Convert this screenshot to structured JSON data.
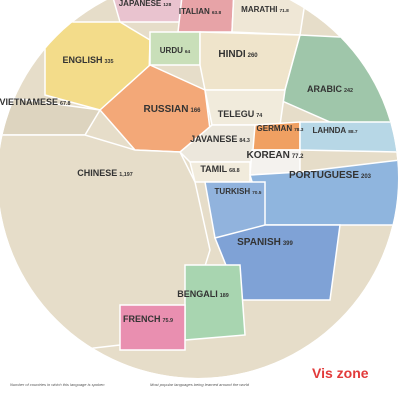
{
  "languages": [
    {
      "name": "JAPANESE",
      "value": 128
    },
    {
      "name": "ITALIAN",
      "value": 63.8
    },
    {
      "name": "MARATHI",
      "value": 71.8
    },
    {
      "name": "ENGLISH",
      "value": 335
    },
    {
      "name": "URDU",
      "value": 64
    },
    {
      "name": "HINDI",
      "value": 260
    },
    {
      "name": "ARABIC",
      "value": 242
    },
    {
      "name": "VIETNAMESE",
      "value": 67.8
    },
    {
      "name": "RUSSIAN",
      "value": 166
    },
    {
      "name": "TELEGU",
      "value": 74
    },
    {
      "name": "GERMAN",
      "value": 78.3
    },
    {
      "name": "LAHNDA",
      "value": 88.7
    },
    {
      "name": "JAVANESE",
      "value": 84.3
    },
    {
      "name": "KOREAN",
      "value": 77.2
    },
    {
      "name": "TAMIL",
      "value": 68.8
    },
    {
      "name": "PORTUGUESE",
      "value": 203
    },
    {
      "name": "CHINESE",
      "value": "1,197"
    },
    {
      "name": "TURKISH",
      "value": 70.5
    },
    {
      "name": "SPANISH",
      "value": 399
    },
    {
      "name": "BENGALI",
      "value": 189
    },
    {
      "name": "FRENCH",
      "value": 75.9
    }
  ],
  "footer": {
    "left": "Number of countries in which this language is spoken",
    "right": "Most popular languages being learned around the world",
    "watermark": "Vis zone"
  }
}
